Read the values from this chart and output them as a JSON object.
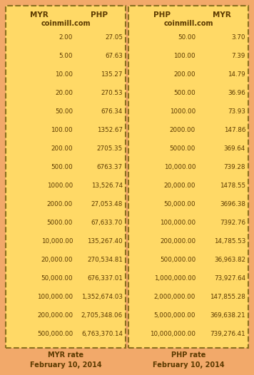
{
  "outer_bg": "#F2A96A",
  "table_bg": "#FFD966",
  "border_color": "#8B7020",
  "text_color": "#5C3A00",
  "left_table": {
    "col1_header": "MYR",
    "col2_header": "PHP",
    "subtitle": "coinmill.com",
    "col1": [
      "2.00",
      "5.00",
      "10.00",
      "20.00",
      "50.00",
      "100.00",
      "200.00",
      "500.00",
      "1000.00",
      "2000.00",
      "5000.00",
      "10,000.00",
      "20,000.00",
      "50,000.00",
      "100,000.00",
      "200,000.00",
      "500,000.00"
    ],
    "col2": [
      "27.05",
      "67.63",
      "135.27",
      "270.53",
      "676.34",
      "1352.67",
      "2705.35",
      "6763.37",
      "13,526.74",
      "27,053.48",
      "67,633.70",
      "135,267.40",
      "270,534.81",
      "676,337.01",
      "1,352,674.03",
      "2,705,348.06",
      "6,763,370.14"
    ],
    "footer1": "MYR rate",
    "footer2": "February 10, 2014"
  },
  "right_table": {
    "col1_header": "PHP",
    "col2_header": "MYR",
    "subtitle": "coinmill.com",
    "col1": [
      "50.00",
      "100.00",
      "200.00",
      "500.00",
      "1000.00",
      "2000.00",
      "5000.00",
      "10,000.00",
      "20,000.00",
      "50,000.00",
      "100,000.00",
      "200,000.00",
      "500,000.00",
      "1,000,000.00",
      "2,000,000.00",
      "5,000,000.00",
      "10,000,000.00"
    ],
    "col2": [
      "3.70",
      "7.39",
      "14.79",
      "36.96",
      "73.93",
      "147.86",
      "369.64",
      "739.28",
      "1478.55",
      "3696.38",
      "7392.76",
      "14,785.53",
      "36,963.82",
      "73,927.64",
      "147,855.28",
      "369,638.21",
      "739,276.41"
    ],
    "footer1": "PHP rate",
    "footer2": "February 10, 2014"
  },
  "fig_width": 3.56,
  "fig_height": 5.26,
  "dpi": 100
}
